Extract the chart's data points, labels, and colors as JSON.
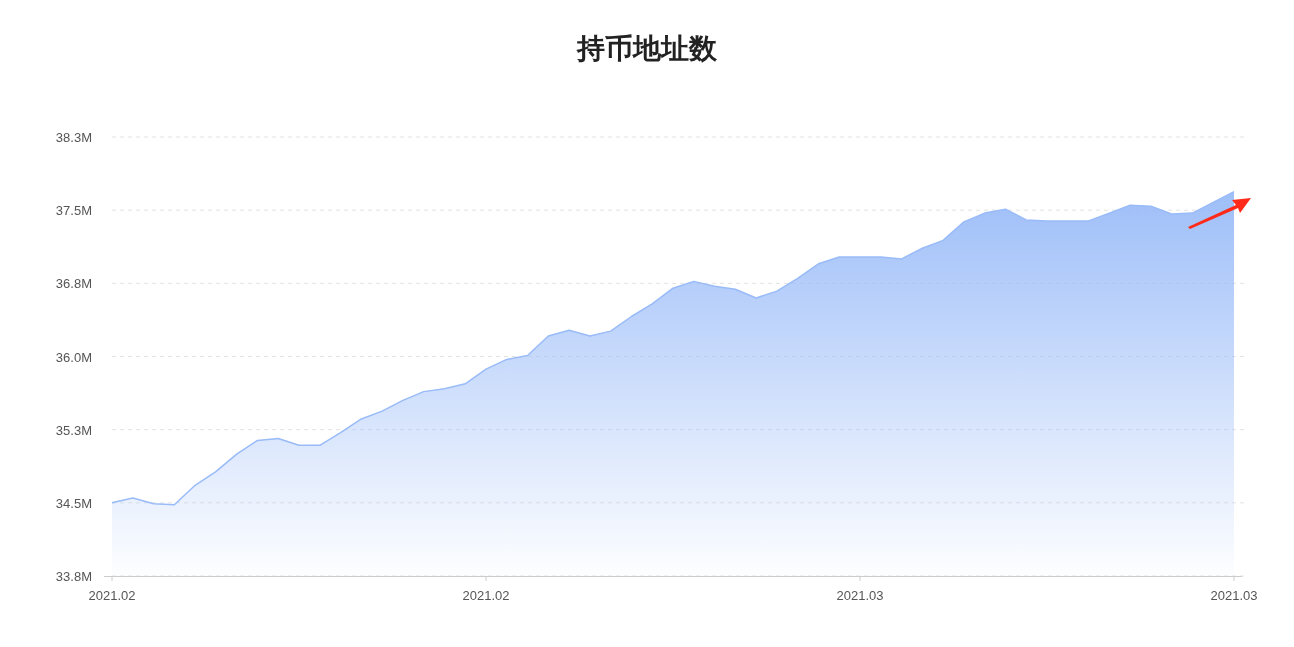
{
  "chart_data": {
    "type": "area",
    "title": "持币地址数",
    "categories": [
      "2021.02",
      null,
      null,
      null,
      null,
      null,
      null,
      null,
      null,
      null,
      null,
      null,
      null,
      null,
      null,
      null,
      null,
      null,
      "2021.02",
      null,
      null,
      null,
      null,
      null,
      null,
      null,
      null,
      null,
      null,
      null,
      null,
      null,
      null,
      null,
      null,
      null,
      "2021.03",
      null,
      null,
      null,
      null,
      null,
      null,
      null,
      null,
      null,
      null,
      null,
      null,
      null,
      null,
      null,
      null,
      null,
      "2021.03"
    ],
    "series": [
      {
        "color": "#99bbf8",
        "values": [
          34.5,
          34.55,
          34.49,
          34.48,
          34.68,
          34.82,
          35.0,
          35.14,
          35.16,
          35.09,
          35.09,
          35.22,
          35.36,
          35.44,
          35.55,
          35.64,
          35.67,
          35.72,
          35.87,
          35.97,
          36.01,
          36.21,
          36.27,
          36.21,
          36.26,
          36.41,
          36.54,
          36.7,
          36.77,
          36.72,
          36.69,
          36.6,
          36.67,
          36.8,
          36.95,
          37.02,
          37.02,
          37.02,
          37.0,
          37.11,
          37.19,
          37.38,
          37.47,
          37.51,
          37.4,
          37.39,
          37.39,
          37.39,
          37.47,
          37.55,
          37.54,
          37.46,
          37.47,
          37.58,
          37.69
        ]
      }
    ],
    "ylim": [
      33.75,
      38.25
    ],
    "yticks": [
      {
        "value": 33.75,
        "label": "33.8M"
      },
      {
        "value": 34.5,
        "label": "34.5M"
      },
      {
        "value": 35.25,
        "label": "35.3M"
      },
      {
        "value": 36.0,
        "label": "36.0M"
      },
      {
        "value": 36.75,
        "label": "36.8M"
      },
      {
        "value": 37.5,
        "label": "37.5M"
      },
      {
        "value": 38.25,
        "label": "38.3M"
      }
    ],
    "grid": "y"
  }
}
